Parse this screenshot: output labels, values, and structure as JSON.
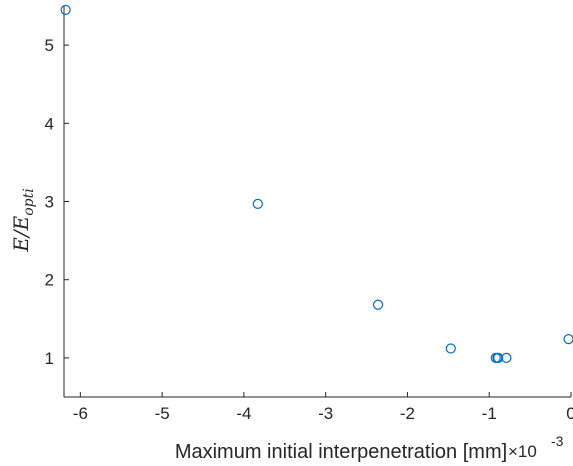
{
  "chart_data": {
    "type": "scatter",
    "xlabel": "Maximum initial interpenetration [mm]",
    "xlabel_exponent": "-3",
    "ylabel_main": "E/E",
    "ylabel_sub": "opti",
    "xlim": [
      -6.2,
      0
    ],
    "ylim": [
      0.5,
      5.5
    ],
    "xticks": [
      -6,
      -5,
      -4,
      -3,
      -2,
      -1,
      0
    ],
    "yticks": [
      1,
      2,
      3,
      4,
      5
    ],
    "series": [
      {
        "marker": "circle",
        "color": "#0072BD",
        "points": [
          {
            "x": -6.18,
            "y": 5.45
          },
          {
            "x": -3.83,
            "y": 2.97
          },
          {
            "x": -2.36,
            "y": 1.68
          },
          {
            "x": -1.47,
            "y": 1.12
          },
          {
            "x": -0.92,
            "y": 1.0
          },
          {
            "x": -0.9,
            "y": 1.0
          },
          {
            "x": -0.89,
            "y": 1.0
          },
          {
            "x": -0.79,
            "y": 1.0
          },
          {
            "x": -0.03,
            "y": 1.24
          }
        ]
      }
    ],
    "grid": false,
    "box": false
  }
}
